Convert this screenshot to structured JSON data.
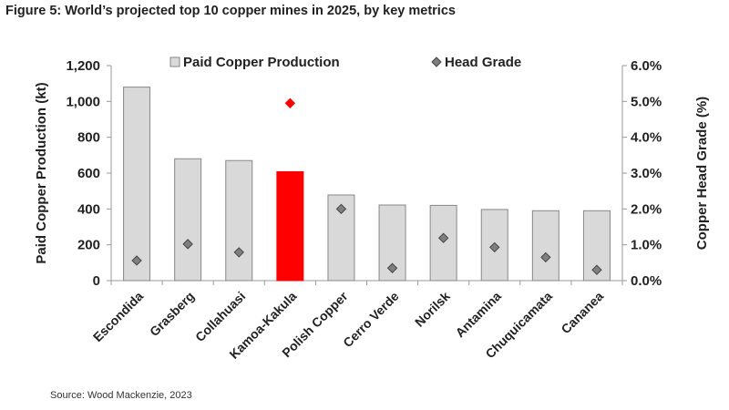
{
  "title": "Figure 5: World’s projected top 10 copper mines in 2025, by key metrics",
  "source": "Source: Wood Mackenzie, 2023",
  "chart_data": {
    "type": "bar",
    "categories": [
      "Escondida",
      "Grasberg",
      "Collahuasi",
      "Kamoa-Kakula",
      "Polish Copper",
      "Cerro Verde",
      "Norilsk",
      "Antamina",
      "Chuquicamata",
      "Cananea"
    ],
    "series": [
      {
        "name": "Paid Copper Production",
        "type": "bar",
        "axis": "left",
        "values": [
          1080,
          680,
          670,
          608,
          478,
          422,
          420,
          397,
          390,
          390
        ],
        "color": "#d9d9d9",
        "highlight_color": "#ff0000",
        "highlight_index": 3
      },
      {
        "name": "Head Grade",
        "type": "scatter",
        "marker": "diamond",
        "axis": "right",
        "values": [
          0.56,
          1.02,
          0.79,
          4.95,
          2.0,
          0.35,
          1.19,
          0.93,
          0.65,
          0.3
        ],
        "color": "#7f7f7f",
        "highlight_color": "#ff0000",
        "highlight_index": 3
      }
    ],
    "ylabel": "Paid Copper Production (kt)",
    "ylim": [
      0,
      1200
    ],
    "yticks": [
      "0",
      "200",
      "400",
      "600",
      "800",
      "1,000",
      "1,200"
    ],
    "y2label": "Copper Head Grade (%)",
    "y2lim": [
      0,
      6
    ],
    "y2ticks": [
      "0.0%",
      "1.0%",
      "2.0%",
      "3.0%",
      "4.0%",
      "5.0%",
      "6.0%"
    ],
    "legend": "top",
    "grid": false
  }
}
